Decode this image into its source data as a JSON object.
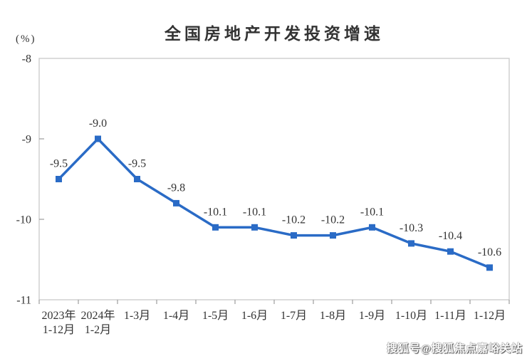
{
  "page": {
    "title": "全国房地产开发投资增速",
    "unit_label": "(%)",
    "watermark": "搜狐号@搜狐焦点嘉峪关站"
  },
  "chart_data": {
    "type": "line",
    "title": "全国房地产开发投资增速",
    "unit": "(%)",
    "categories": [
      "2023年\n1-12月",
      "2024年\n1-2月",
      "1-3月",
      "1-4月",
      "1-5月",
      "1-6月",
      "1-7月",
      "1-8月",
      "1-9月",
      "1-10月",
      "1-11月",
      "1-12月"
    ],
    "series": [
      {
        "name": "全国房地产开发投资增速",
        "values": [
          -9.5,
          -9.0,
          -9.5,
          -9.8,
          -10.1,
          -10.1,
          -10.2,
          -10.2,
          -10.1,
          -10.3,
          -10.4,
          -10.6
        ],
        "labels": [
          "-9.5",
          "-9.0",
          "-9.5",
          "-9.8",
          "-10.1",
          "-10.1",
          "-10.2",
          "-10.2",
          "-10.1",
          "-10.3",
          "-10.4",
          "-10.6"
        ],
        "color": "#2A6BC6",
        "marker": "square"
      }
    ],
    "ylim": [
      -11,
      -8
    ],
    "y_ticks": [
      -8,
      -9,
      -10,
      -11
    ],
    "y_tick_labels": [
      "-8",
      "-9",
      "-10",
      "-11"
    ],
    "grid": false,
    "legend": "none",
    "xlabel": "",
    "ylabel": "(%)",
    "colors": {
      "line": "#2A6BC6",
      "text": "#333333",
      "plot_border": "#C9C9C9",
      "tick": "#9C9C9C",
      "background": "#FFFFFF"
    }
  }
}
